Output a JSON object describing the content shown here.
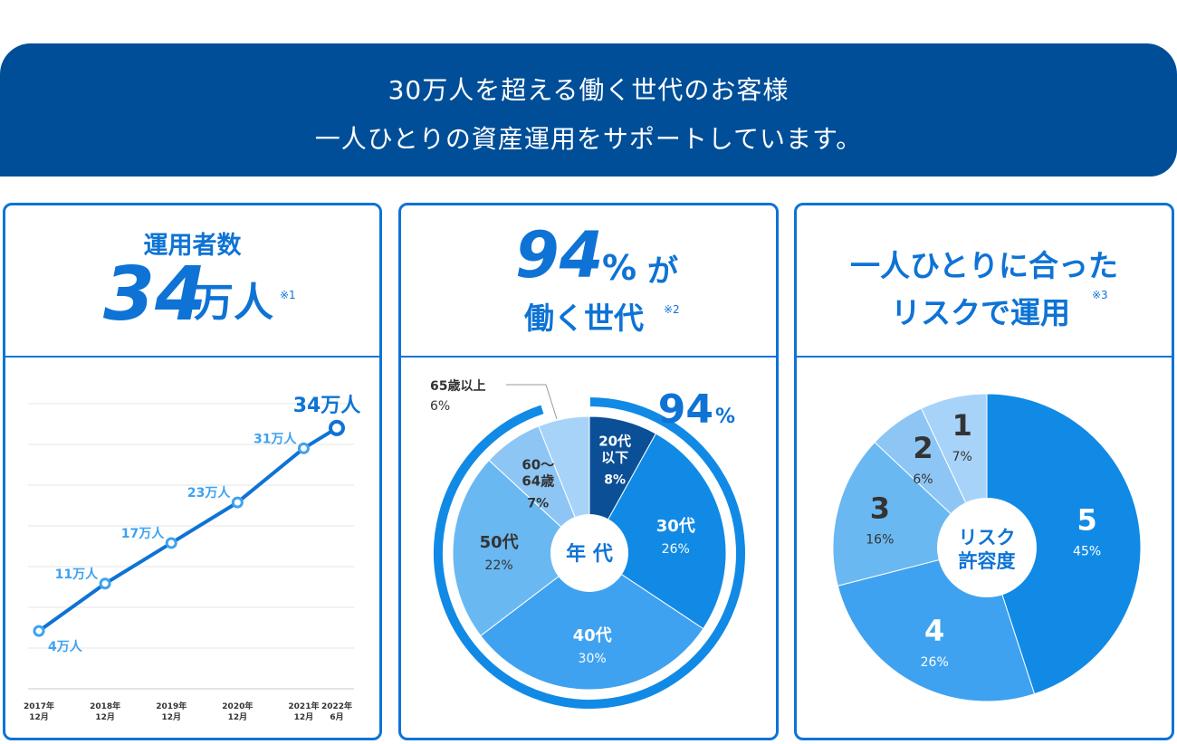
{
  "banner": {
    "line1": "30万人を超える働く世代のお客様",
    "line2": "一人ひとりの資産運用をサポートしています。"
  },
  "colors": {
    "navy": "#004e98",
    "blue": "#0e73d5",
    "bright": "#118ae6",
    "light": "#3ea2f0",
    "lighter": "#6ab8f2",
    "palest": "#a8d3f8",
    "dark": "#0b4f97",
    "text": "#333333"
  },
  "panel1": {
    "title": "運用者数",
    "big_number": "34",
    "unit": "万人",
    "note": "※1",
    "final_label": "34万人"
  },
  "panel2": {
    "big_number": "94",
    "percent_sign": "%",
    "suffix": "が",
    "subtitle": "働く世代",
    "note": "※2",
    "ring_label": "94",
    "ring_label_pct": "%",
    "center_label": "年 代",
    "outside_label": "65歳以上",
    "outside_pct": "6%"
  },
  "panel3": {
    "title_line1": "一人ひとりに合った",
    "title_line2": "リスクで運用",
    "note": "※3",
    "center_line1": "リスク",
    "center_line2": "許容度"
  },
  "chart_data": [
    {
      "type": "line",
      "title": "運用者数",
      "categories": [
        "2017年\n12月",
        "2018年\n12月",
        "2019年\n12月",
        "2020年\n12月",
        "2021年\n12月",
        "2022年\n6月"
      ],
      "x": [
        2017.92,
        2018.92,
        2019.92,
        2020.92,
        2021.92,
        2022.42
      ],
      "values": [
        4,
        11,
        17,
        23,
        31,
        34
      ],
      "data_labels": [
        "4万人",
        "11万人",
        "17万人",
        "23万人",
        "31万人",
        "34万人"
      ],
      "unit": "万人",
      "ylim": [
        0,
        38
      ],
      "grid": true
    },
    {
      "type": "pie",
      "title": "年代",
      "slices": [
        {
          "label": "20代以下",
          "label_lines": [
            "20代",
            "以下"
          ],
          "value": 8,
          "pct": "8%",
          "color": "#0b4f97",
          "text_color": "#ffffff"
        },
        {
          "label": "30代",
          "label_lines": [
            "30代"
          ],
          "value": 26,
          "pct": "26%",
          "color": "#118ae6",
          "text_color": "#ffffff"
        },
        {
          "label": "40代",
          "label_lines": [
            "40代"
          ],
          "value": 30,
          "pct": "30%",
          "color": "#3ea2f0",
          "text_color": "#ffffff"
        },
        {
          "label": "50代",
          "label_lines": [
            "50代"
          ],
          "value": 22,
          "pct": "22%",
          "color": "#6ab8f2",
          "text_color": "#333333"
        },
        {
          "label": "60～64歳",
          "label_lines": [
            "60～",
            "64歳"
          ],
          "value": 7,
          "pct": "7%",
          "color": "#8dc6f5",
          "text_color": "#333333"
        },
        {
          "label": "65歳以上",
          "label_lines": [],
          "value": 6,
          "pct": "6%",
          "color": "#a8d3f8",
          "text_color": "#333333"
        }
      ],
      "highlight_ring": {
        "label": "94%",
        "value": 94
      }
    },
    {
      "type": "pie",
      "title": "リスク許容度",
      "slices": [
        {
          "label": "5",
          "value": 45,
          "pct": "45%",
          "color": "#118ae6",
          "text_color": "#ffffff"
        },
        {
          "label": "4",
          "value": 26,
          "pct": "26%",
          "color": "#3ea2f0",
          "text_color": "#ffffff"
        },
        {
          "label": "3",
          "value": 16,
          "pct": "16%",
          "color": "#6ab8f2",
          "text_color": "#333333"
        },
        {
          "label": "2",
          "value": 6,
          "pct": "6%",
          "color": "#8dc6f5",
          "text_color": "#333333"
        },
        {
          "label": "1",
          "value": 7,
          "pct": "7%",
          "color": "#a8d3f8",
          "text_color": "#333333"
        }
      ]
    }
  ]
}
